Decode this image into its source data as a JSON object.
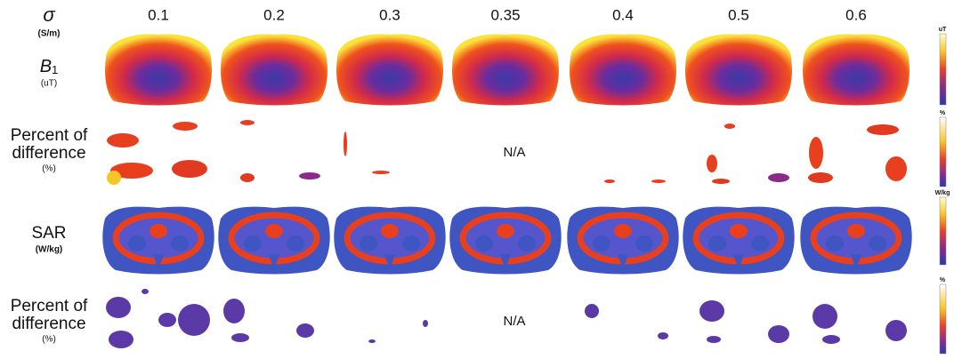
{
  "header": {
    "sigma": "σ",
    "sigma_unit": "(S/m)",
    "conductivities": [
      "0.1",
      "0.2",
      "0.3",
      "0.35",
      "0.4",
      "0.5",
      "0.6"
    ]
  },
  "rows": [
    {
      "label": "B",
      "subscript": "1",
      "unit": "(uT)",
      "colorbar_unit": "uT"
    },
    {
      "label_line1": "Percent of",
      "label_line2": "difference",
      "unit": "(%)",
      "na": "N/A",
      "colorbar_unit": "%"
    },
    {
      "label": "SAR",
      "unit": "(W/kg)",
      "colorbar_unit": "W/kg"
    },
    {
      "label_line1": "Percent of",
      "label_line2": "difference",
      "unit": "(%)",
      "na": "N/A",
      "colorbar_unit": "%"
    }
  ]
}
